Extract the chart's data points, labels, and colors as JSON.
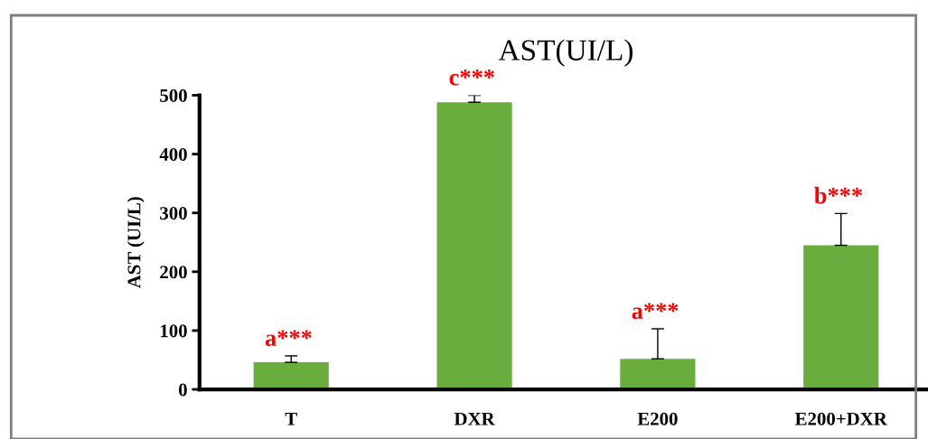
{
  "chart_data": {
    "type": "bar",
    "title": "AST(UI/L)",
    "ylabel": "AST (UI/L)",
    "categories": [
      "T",
      "DXR",
      "E200",
      "E200+DXR"
    ],
    "values": [
      46,
      488,
      52,
      245
    ],
    "errors": [
      [
        46,
        57
      ],
      [
        488,
        500
      ],
      [
        52,
        103
      ],
      [
        245,
        299
      ]
    ],
    "color": "#6aad3f",
    "ylim": [
      0,
      500
    ],
    "yticks": [
      0,
      100,
      200,
      300,
      400,
      500
    ],
    "grid": false,
    "annotations": [
      {
        "text": "a***",
        "x": "T",
        "y": 57
      },
      {
        "text": "c***",
        "x": "DXR",
        "y": 500
      },
      {
        "text": "a***",
        "x": "E200",
        "y": 103
      },
      {
        "text": "b***",
        "x": "E200+DXR",
        "y": 299
      }
    ]
  }
}
